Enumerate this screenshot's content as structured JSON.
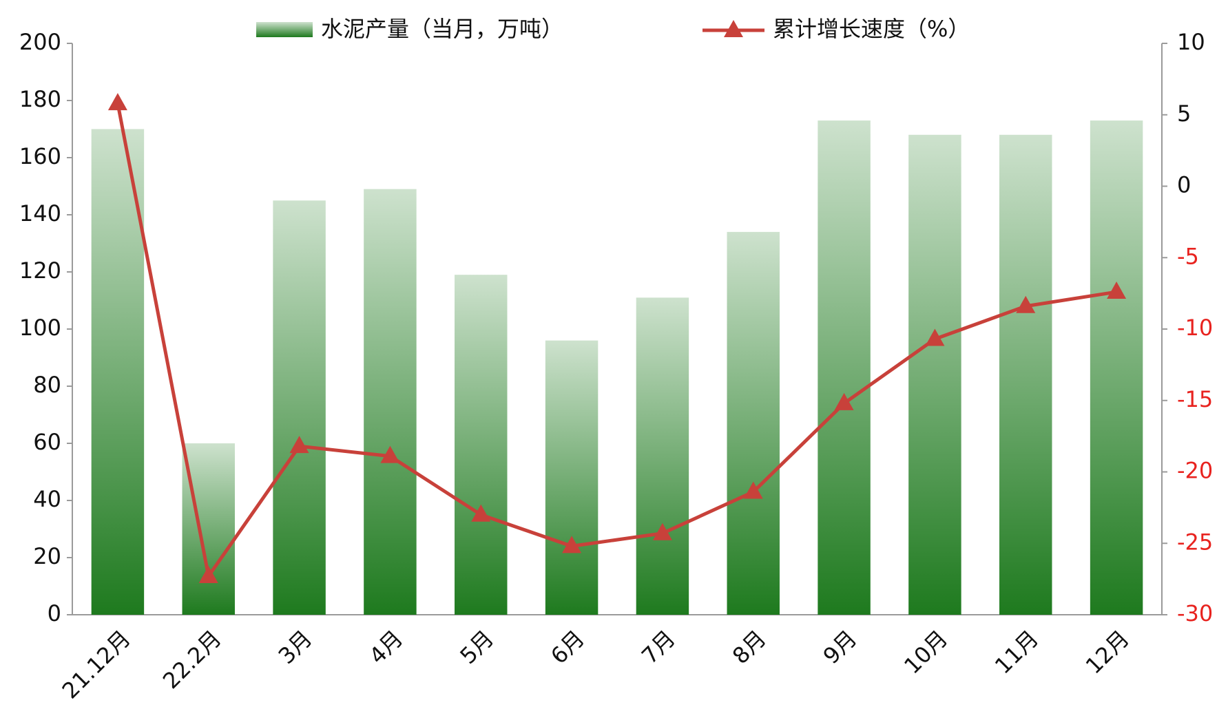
{
  "chart_data": {
    "type": "bar-line",
    "categories": [
      "21.12月",
      "22.2月",
      "3月",
      "4月",
      "5月",
      "6月",
      "7月",
      "8月",
      "9月",
      "10月",
      "11月",
      "12月"
    ],
    "series": [
      {
        "name": "水泥产量（当月，万吨）",
        "type": "bar",
        "color": "#1e7a1e",
        "values": [
          170,
          60,
          145,
          149,
          119,
          96,
          111,
          134,
          173,
          168,
          168,
          173
        ]
      },
      {
        "name": "累计增长速度（%）",
        "type": "line",
        "axis": "y2",
        "color": "#c8413a",
        "values": [
          5.8,
          -27.3,
          -18.2,
          -18.9,
          -23.0,
          -25.2,
          -24.3,
          -21.4,
          -15.2,
          -10.7,
          -8.4,
          -7.4
        ]
      }
    ],
    "ylim": [
      0,
      200
    ],
    "yticks": [
      0,
      20,
      40,
      60,
      80,
      100,
      120,
      140,
      160,
      180,
      200
    ],
    "y2lim": [
      -30,
      10
    ],
    "y2ticks": [
      -30,
      -25,
      -20,
      -15,
      -10,
      -5,
      0,
      5,
      10
    ],
    "y2tick_negative_color": "#e8231f",
    "grid": false,
    "legend": "top"
  }
}
